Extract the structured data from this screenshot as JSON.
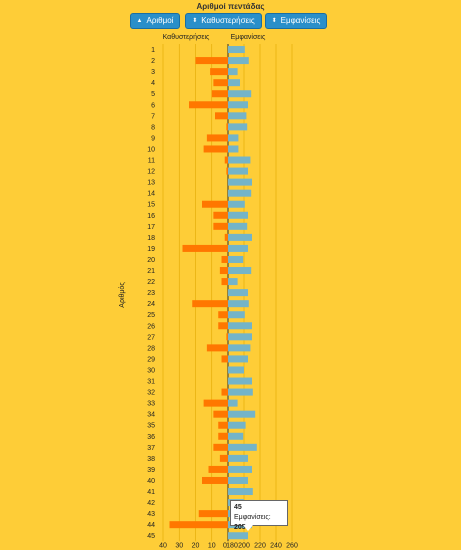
{
  "toolbar": {
    "title": "Αριθμοί πεντάδας",
    "buttons": [
      {
        "label": "Αριθμοί",
        "icon": "sort-up-icon"
      },
      {
        "label": "Καθυστερήσεις",
        "icon": "sort-updown-icon"
      },
      {
        "label": "Εμφανίσεις",
        "icon": "sort-updown-icon"
      }
    ]
  },
  "tooltip": {
    "number": "45",
    "label": "Εμφανίσεις:",
    "value": "205"
  },
  "colors": {
    "background": "#fecd37",
    "delays": "#ff7700",
    "appearances": "#74b4c8",
    "button": "#2a8fc9",
    "grid": "#e0a800",
    "axis": "#333333"
  },
  "chart_data": {
    "type": "bar",
    "orientation": "horizontal-diverging",
    "y_axis_label": "Αριθμός",
    "categories": [
      "1",
      "2",
      "3",
      "4",
      "5",
      "6",
      "7",
      "8",
      "9",
      "10",
      "11",
      "12",
      "13",
      "14",
      "15",
      "16",
      "17",
      "18",
      "19",
      "20",
      "21",
      "22",
      "23",
      "24",
      "25",
      "26",
      "27",
      "28",
      "29",
      "30",
      "31",
      "32",
      "33",
      "34",
      "35",
      "36",
      "37",
      "38",
      "39",
      "40",
      "41",
      "42",
      "43",
      "44",
      "45"
    ],
    "series": [
      {
        "name": "Καθυστερήσεις",
        "side": "left",
        "xlim": [
          0,
          40
        ],
        "ticks": [
          40,
          30,
          20,
          10,
          0
        ],
        "values": [
          0,
          20,
          11,
          9,
          10,
          24,
          8,
          1,
          13,
          15,
          2,
          1,
          0,
          0,
          16,
          9,
          9,
          2,
          28,
          4,
          5,
          4,
          0,
          22,
          6,
          6,
          1,
          13,
          4,
          0,
          0,
          4,
          15,
          9,
          6,
          6,
          9,
          5,
          12,
          16,
          0,
          0,
          18,
          36,
          0
        ]
      },
      {
        "name": "Εμφανίσεις",
        "side": "right",
        "xlim": [
          180,
          260
        ],
        "ticks": [
          180,
          200,
          220,
          240,
          260
        ],
        "values": [
          201,
          206,
          192,
          195,
          209,
          205,
          203,
          204,
          193,
          193,
          208,
          205,
          210,
          209,
          201,
          205,
          204,
          210,
          205,
          199,
          209,
          192,
          205,
          206,
          201,
          210,
          210,
          208,
          205,
          200,
          210,
          211,
          192,
          214,
          202,
          199,
          216,
          205,
          210,
          205,
          211,
          200,
          202,
          210,
          205
        ]
      }
    ],
    "grid": true
  }
}
